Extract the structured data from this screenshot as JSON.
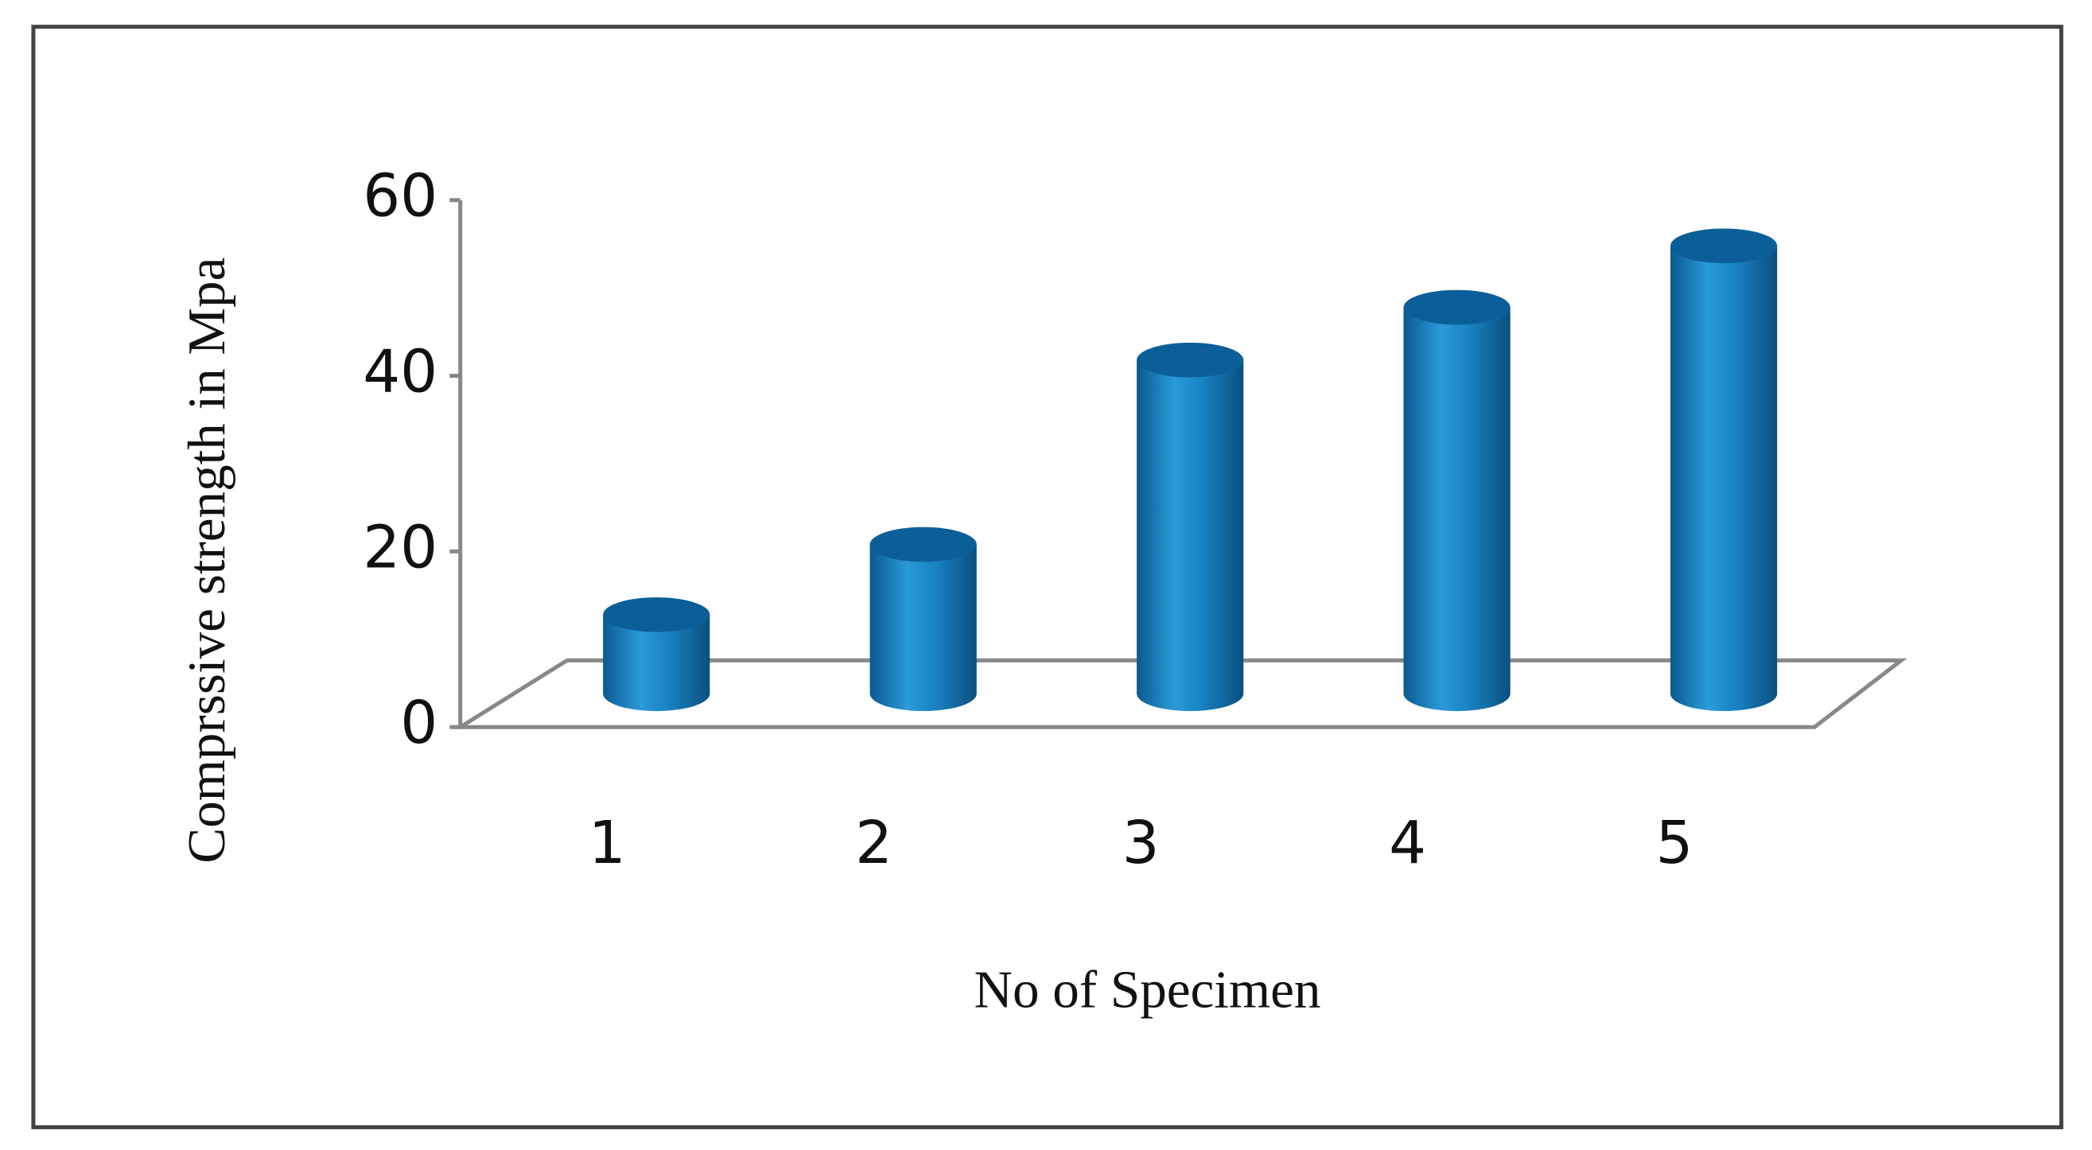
{
  "chart_data": {
    "type": "bar",
    "x_label": "No of Specimen",
    "y_label": "Comprssive strength in Mpa",
    "categories": [
      "1",
      "2",
      "3",
      "4",
      "5"
    ],
    "values": [
      9,
      17,
      38,
      44,
      51
    ],
    "color": "#0f75b5",
    "ylim": [
      0,
      60
    ],
    "yticks": [
      0,
      20,
      40,
      60
    ]
  }
}
